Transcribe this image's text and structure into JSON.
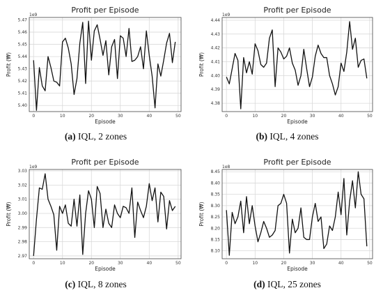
{
  "chart_data": [
    {
      "type": "line",
      "title": "Profit per Episode",
      "xlabel": "Episode",
      "ylabel": "Profit (₩)",
      "offset": "1e9",
      "xlim": [
        -1.5,
        51
      ],
      "ylim": [
        5.395,
        5.472
      ],
      "xticks": [
        0,
        10,
        20,
        30,
        40,
        50
      ],
      "yticks": [
        5.4,
        5.41,
        5.42,
        5.43,
        5.44,
        5.45,
        5.46,
        5.47
      ],
      "grid": true,
      "x": [
        0,
        1,
        2,
        3,
        4,
        5,
        6,
        7,
        8,
        9,
        10,
        11,
        12,
        13,
        14,
        15,
        16,
        17,
        18,
        19,
        20,
        21,
        22,
        23,
        24,
        25,
        26,
        27,
        28,
        29,
        30,
        31,
        32,
        33,
        34,
        35,
        36,
        37,
        38,
        39,
        40,
        41,
        42,
        43,
        44,
        45,
        46,
        47,
        48,
        49
      ],
      "values": [
        5.437,
        5.396,
        5.431,
        5.416,
        5.412,
        5.44,
        5.431,
        5.42,
        5.419,
        5.416,
        5.452,
        5.455,
        5.447,
        5.434,
        5.409,
        5.422,
        5.451,
        5.468,
        5.418,
        5.469,
        5.437,
        5.461,
        5.466,
        5.454,
        5.441,
        5.453,
        5.425,
        5.448,
        5.454,
        5.422,
        5.457,
        5.455,
        5.44,
        5.463,
        5.436,
        5.437,
        5.44,
        5.448,
        5.43,
        5.461,
        5.441,
        5.424,
        5.398,
        5.434,
        5.424,
        5.437,
        5.451,
        5.459,
        5.435,
        5.452
      ],
      "caption": {
        "label": "(a)",
        "text": " IQL, 2 zones"
      }
    },
    {
      "type": "line",
      "title": "Profit per Episode",
      "xlabel": "Episode",
      "ylabel": "Profit (₩)",
      "offset": "1e9",
      "xlim": [
        -1.5,
        51
      ],
      "ylim": [
        4.374,
        4.442
      ],
      "xticks": [
        0,
        10,
        20,
        30,
        40,
        50
      ],
      "yticks": [
        4.38,
        4.39,
        4.4,
        4.41,
        4.42,
        4.43,
        4.44
      ],
      "grid": true,
      "x": [
        0,
        1,
        2,
        3,
        4,
        5,
        6,
        7,
        8,
        9,
        10,
        11,
        12,
        13,
        14,
        15,
        16,
        17,
        18,
        19,
        20,
        21,
        22,
        23,
        24,
        25,
        26,
        27,
        28,
        29,
        30,
        31,
        32,
        33,
        34,
        35,
        36,
        37,
        38,
        39,
        40,
        41,
        42,
        43,
        44,
        45,
        46,
        47,
        48,
        49
      ],
      "values": [
        4.399,
        4.394,
        4.405,
        4.416,
        4.411,
        4.376,
        4.413,
        4.402,
        4.41,
        4.401,
        4.423,
        4.418,
        4.408,
        4.406,
        4.409,
        4.427,
        4.433,
        4.392,
        4.42,
        4.417,
        4.412,
        4.414,
        4.42,
        4.409,
        4.404,
        4.393,
        4.4,
        4.419,
        4.405,
        4.392,
        4.399,
        4.414,
        4.422,
        4.416,
        4.413,
        4.413,
        4.4,
        4.394,
        4.386,
        4.392,
        4.409,
        4.403,
        4.417,
        4.439,
        4.419,
        4.427,
        4.406,
        4.411,
        4.412,
        4.398
      ],
      "caption": {
        "label": "(b)",
        "text": " IQL, 4 zones"
      }
    },
    {
      "type": "line",
      "title": "Profit per Episode",
      "xlabel": "Episode",
      "ylabel": "Profit (₩)",
      "offset": "1e9",
      "xlim": [
        -1.5,
        51
      ],
      "ylim": [
        2.968,
        3.031
      ],
      "xticks": [
        0,
        10,
        20,
        30,
        40,
        50
      ],
      "yticks": [
        2.97,
        2.98,
        2.99,
        3.0,
        3.01,
        3.02,
        3.03
      ],
      "grid": true,
      "x": [
        0,
        1,
        2,
        3,
        4,
        5,
        6,
        7,
        8,
        9,
        10,
        11,
        12,
        13,
        14,
        15,
        16,
        17,
        18,
        19,
        20,
        21,
        22,
        23,
        24,
        25,
        26,
        27,
        28,
        29,
        30,
        31,
        32,
        33,
        34,
        35,
        36,
        37,
        38,
        39,
        40,
        41,
        42,
        43,
        44,
        45,
        46,
        47,
        48,
        49
      ],
      "values": [
        2.97,
        2.996,
        3.018,
        3.017,
        3.028,
        3.01,
        3.005,
        2.999,
        2.974,
        3.005,
        3.0,
        3.006,
        2.993,
        2.991,
        3.01,
        2.991,
        3.013,
        2.971,
        3.0,
        3.016,
        3.01,
        2.99,
        3.019,
        3.014,
        2.99,
        3.003,
        2.993,
        2.99,
        3.006,
        3.0,
        2.997,
        3.005,
        3.004,
        3.0,
        3.018,
        2.983,
        3.008,
        3.002,
        2.997,
        3.005,
        3.021,
        3.009,
        3.018,
        2.994,
        3.015,
        3.012,
        2.989,
        3.009,
        3.002,
        3.005
      ],
      "caption": {
        "label": "(c)",
        "text": " IQL, 8 zones"
      }
    },
    {
      "type": "line",
      "title": "Profit per Episode",
      "xlabel": "Episode",
      "ylabel": "Profit (₩)",
      "offset": "1e8",
      "xlim": [
        -1.5,
        51
      ],
      "ylim": [
        8.065,
        8.46
      ],
      "xticks": [
        0,
        10,
        20,
        30,
        40,
        50
      ],
      "yticks": [
        8.1,
        8.15,
        8.2,
        8.25,
        8.3,
        8.35,
        8.4,
        8.45
      ],
      "grid": true,
      "x": [
        0,
        1,
        2,
        3,
        4,
        5,
        6,
        7,
        8,
        9,
        10,
        11,
        12,
        13,
        14,
        15,
        16,
        17,
        18,
        19,
        20,
        21,
        22,
        23,
        24,
        25,
        26,
        27,
        28,
        29,
        30,
        31,
        32,
        33,
        34,
        35,
        36,
        37,
        38,
        39,
        40,
        41,
        42,
        43,
        44,
        45,
        46,
        47,
        48,
        49
      ],
      "values": [
        8.28,
        8.08,
        8.27,
        8.22,
        8.25,
        8.32,
        8.18,
        8.34,
        8.22,
        8.3,
        8.21,
        8.14,
        8.18,
        8.23,
        8.2,
        8.16,
        8.17,
        8.19,
        8.3,
        8.31,
        8.35,
        8.31,
        8.09,
        8.24,
        8.18,
        8.2,
        8.29,
        8.16,
        8.15,
        8.15,
        8.25,
        8.31,
        8.23,
        8.25,
        8.11,
        8.13,
        8.21,
        8.19,
        8.25,
        8.36,
        8.26,
        8.42,
        8.17,
        8.32,
        8.41,
        8.29,
        8.45,
        8.35,
        8.33,
        8.12
      ],
      "caption": {
        "label": "(d)",
        "text": " IQL, 25 zones"
      }
    }
  ]
}
